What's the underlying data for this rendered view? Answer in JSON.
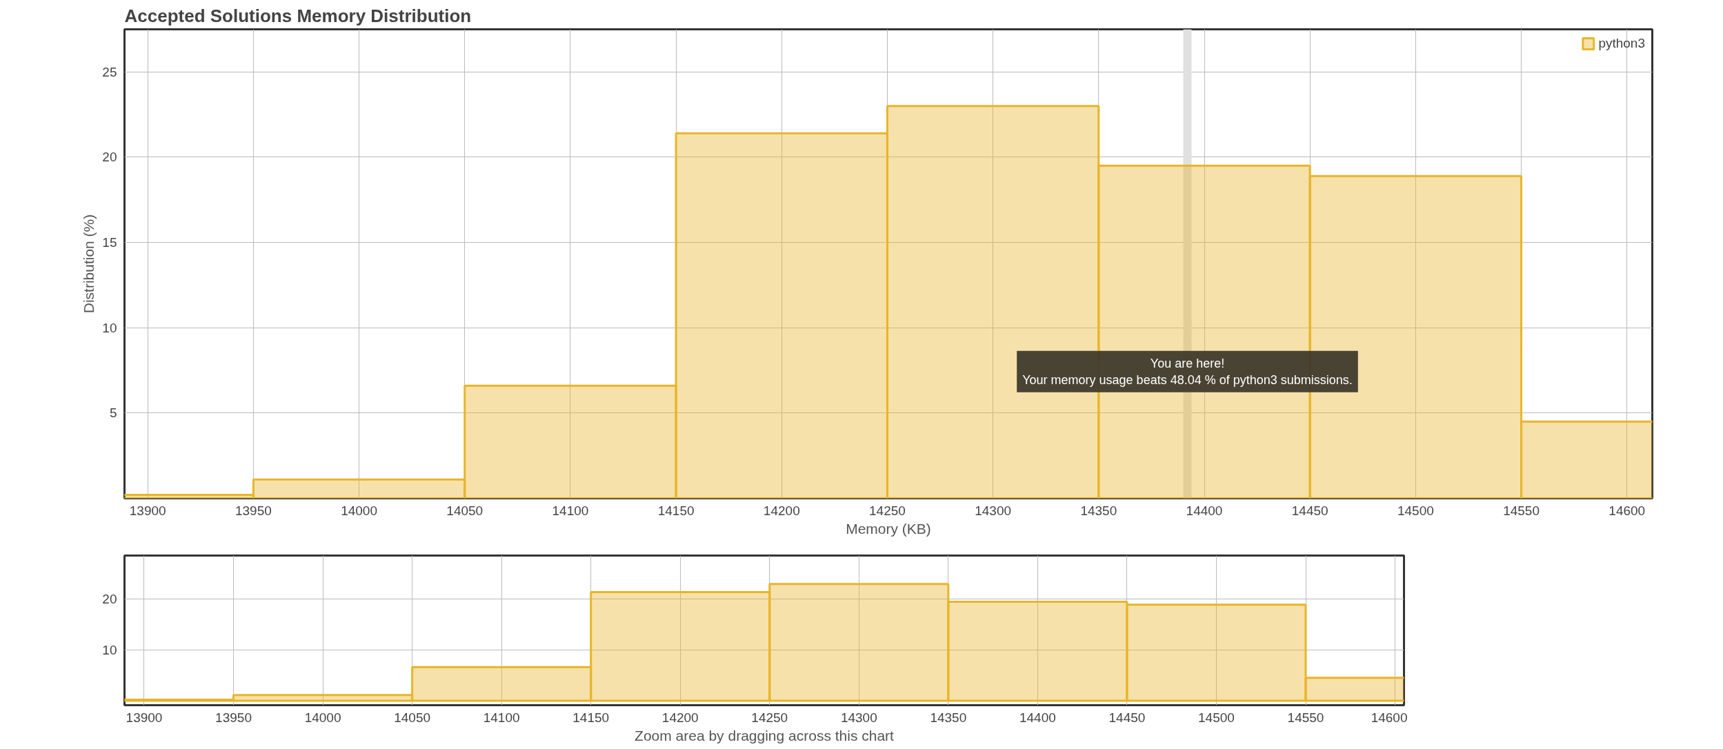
{
  "chart_data": [
    {
      "type": "histogram",
      "title": "Accepted Solutions Memory Distribution",
      "xlabel": "Memory (KB)",
      "ylabel": "Distribution (%)",
      "bins": [
        13850,
        13950,
        14050,
        14150,
        14250,
        14350,
        14450,
        14550,
        14650
      ],
      "series": [
        {
          "name": "python3",
          "color": "#e8b52a",
          "values": [
            0.2,
            1.1,
            6.6,
            21.4,
            23.0,
            19.5,
            18.9,
            4.5
          ]
        }
      ],
      "xlim": [
        13889,
        14612
      ],
      "ylim": [
        0,
        27.5
      ],
      "xticks": [
        13900,
        13950,
        14000,
        14050,
        14100,
        14150,
        14200,
        14250,
        14300,
        14350,
        14400,
        14450,
        14500,
        14550,
        14600
      ],
      "yticks": [
        5,
        10,
        15,
        20,
        25
      ],
      "grid": true,
      "legend": "top right",
      "ref_lines": [
        {
          "axis": "x",
          "value": 14392,
          "label": null,
          "color": "#e0e0e0"
        }
      ],
      "annotations": [
        {
          "text": "You are here!\nYour memory usage beats 48.04 % of python3 submissions.",
          "x": 14392,
          "y": 5
        }
      ]
    },
    {
      "type": "histogram",
      "xlabel": "Zoom area by dragging across this chart",
      "bins": [
        13850,
        13950,
        14050,
        14150,
        14250,
        14350,
        14450,
        14550,
        14650
      ],
      "series": [
        {
          "color": "#e8b52a",
          "values": [
            0.2,
            1.1,
            6.6,
            21.4,
            23.0,
            19.5,
            18.9,
            4.5
          ]
        }
      ],
      "xlim": [
        13889,
        14605
      ],
      "ylim": [
        -0.9,
        28.6
      ],
      "xticks": [
        13900,
        13950,
        14000,
        14050,
        14100,
        14150,
        14200,
        14250,
        14300,
        14350,
        14400,
        14450,
        14500,
        14550,
        14600
      ],
      "yticks": [
        10,
        20
      ],
      "grid": true
    }
  ]
}
